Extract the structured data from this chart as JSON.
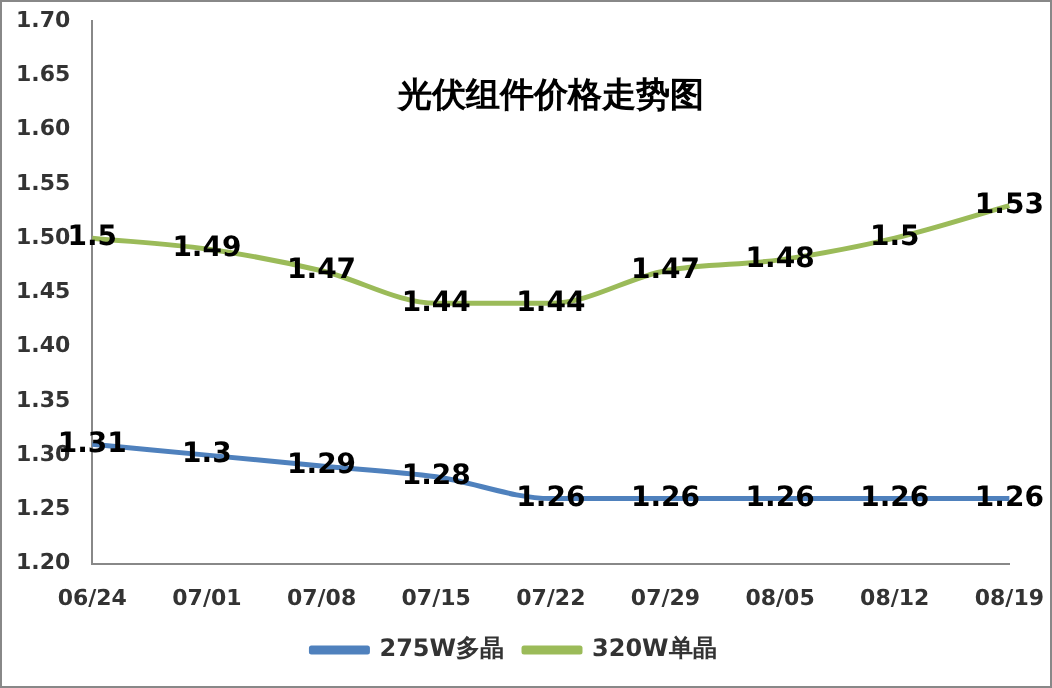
{
  "chart_data": {
    "type": "line",
    "title": "光伏组件价格走势图",
    "categories": [
      "06/24",
      "07/01",
      "07/08",
      "07/15",
      "07/22",
      "07/29",
      "08/05",
      "08/12",
      "08/19"
    ],
    "series": [
      {
        "name": "275W多晶",
        "color": "#4f81bd",
        "values": [
          1.31,
          1.3,
          1.29,
          1.28,
          1.26,
          1.26,
          1.26,
          1.26,
          1.26
        ]
      },
      {
        "name": "320W单晶",
        "color": "#9bbb59",
        "values": [
          1.5,
          1.49,
          1.47,
          1.44,
          1.44,
          1.47,
          1.48,
          1.5,
          1.53
        ]
      }
    ],
    "ylim": [
      1.2,
      1.7
    ],
    "yticks": [
      {
        "value": 1.2,
        "label": "1.20"
      },
      {
        "value": 1.25,
        "label": "1.25"
      },
      {
        "value": 1.3,
        "label": "1.30"
      },
      {
        "value": 1.35,
        "label": "1.35"
      },
      {
        "value": 1.4,
        "label": "1.40"
      },
      {
        "value": 1.45,
        "label": "1.45"
      },
      {
        "value": 1.5,
        "label": "1.50"
      },
      {
        "value": 1.55,
        "label": "1.55"
      },
      {
        "value": 1.6,
        "label": "1.60"
      },
      {
        "value": 1.65,
        "label": "1.65"
      },
      {
        "value": 1.7,
        "label": "1.70"
      }
    ],
    "grid": false,
    "legend": "bottom",
    "marker": "none",
    "line_style": "solid",
    "data_labels": true
  }
}
